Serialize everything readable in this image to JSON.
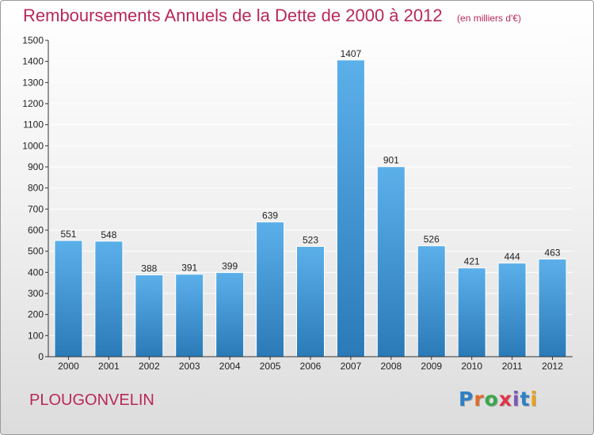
{
  "header": {
    "title": "Remboursements Annuels de la Dette de 2000 à 2012",
    "unit": "(en milliers d'€)"
  },
  "footer": {
    "commune": "PLOUGONVELIN",
    "logo": [
      "P",
      "r",
      "o",
      "x",
      "i",
      "t",
      "i"
    ],
    "logo_colors": [
      "#2e7fc4",
      "#e06b2a",
      "#3aa84a",
      "#e3334a",
      "#7a57b8",
      "#2e7fc4",
      "#e9a11b"
    ]
  },
  "colors": {
    "bar_light": "#5cb0ea",
    "bar_dark": "#2a7ab8",
    "grid": "#ffffff"
  },
  "chart_data": {
    "type": "bar",
    "title": "Remboursements Annuels de la Dette de 2000 à 2012",
    "xlabel": "",
    "ylabel": "",
    "categories": [
      "2000",
      "2001",
      "2002",
      "2003",
      "2004",
      "2005",
      "2006",
      "2007",
      "2008",
      "2009",
      "2010",
      "2011",
      "2012"
    ],
    "values": [
      551,
      548,
      388,
      391,
      399,
      639,
      523,
      1407,
      901,
      526,
      421,
      444,
      463
    ],
    "data_labels": [
      "551",
      "548",
      "388",
      "391",
      "399",
      "639",
      "523",
      "1407",
      "901",
      "526",
      "421",
      "444",
      "463"
    ],
    "ylim": [
      0,
      1500
    ],
    "yticks": [
      0,
      100,
      200,
      300,
      400,
      500,
      600,
      700,
      800,
      900,
      1000,
      1100,
      1200,
      1300,
      1400,
      1500
    ],
    "grid": true,
    "legend": "none"
  }
}
